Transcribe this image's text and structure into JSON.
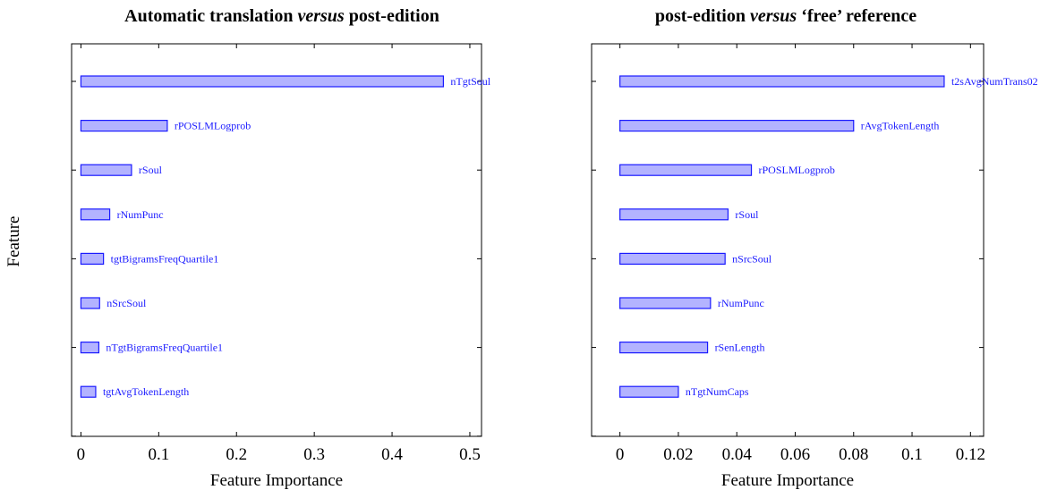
{
  "shared": {
    "ylabel": "Feature"
  },
  "chart_data": [
    {
      "type": "bar",
      "orientation": "horizontal",
      "title_parts": [
        {
          "text": "Automatic translation ",
          "italic": false
        },
        {
          "text": "versus",
          "italic": true
        },
        {
          "text": " post-edition",
          "italic": false
        }
      ],
      "xlabel": "Feature Importance",
      "ylabel": "Feature",
      "xlim": [
        -0.012,
        0.515
      ],
      "xticks": [
        "0",
        "0.1",
        "0.2",
        "0.3",
        "0.4",
        "0.5"
      ],
      "xtick_values": [
        0,
        0.1,
        0.2,
        0.3,
        0.4,
        0.5
      ],
      "categories": [
        "nTgtSoul",
        "rPOSLMLogprob",
        "rSoul",
        "rNumPunc",
        "tgtBigramsFreqQuartile1",
        "nSrcSoul",
        "nTgtBigramsFreqQuartile1",
        "tgtAvgTokenLength"
      ],
      "values": [
        0.466,
        0.111,
        0.065,
        0.037,
        0.029,
        0.024,
        0.023,
        0.019
      ],
      "grid": false,
      "colors": {
        "fill": "#b3b3ff",
        "stroke": "#1a1aff"
      }
    },
    {
      "type": "bar",
      "orientation": "horizontal",
      "title_parts": [
        {
          "text": "post-edition ",
          "italic": false
        },
        {
          "text": "versus",
          "italic": true
        },
        {
          "text": " ‘free’ reference",
          "italic": false
        }
      ],
      "xlabel": "Feature Importance",
      "ylabel": "",
      "xlim": [
        -0.0097,
        0.1245
      ],
      "xticks": [
        "0",
        "0.02",
        "0.04",
        "0.06",
        "0.08",
        "0.1",
        "0.12"
      ],
      "xtick_values": [
        0,
        0.02,
        0.04,
        0.06,
        0.08,
        0.1,
        0.12
      ],
      "categories": [
        "t2sAvgNumTrans02",
        "rAvgTokenLength",
        "rPOSLMLogprob",
        "rSoul",
        "nSrcSoul",
        "rNumPunc",
        "rSenLength",
        "nTgtNumCaps"
      ],
      "values": [
        0.111,
        0.08,
        0.045,
        0.037,
        0.036,
        0.031,
        0.03,
        0.02
      ],
      "grid": false,
      "colors": {
        "fill": "#b3b3ff",
        "stroke": "#1a1aff"
      }
    }
  ]
}
